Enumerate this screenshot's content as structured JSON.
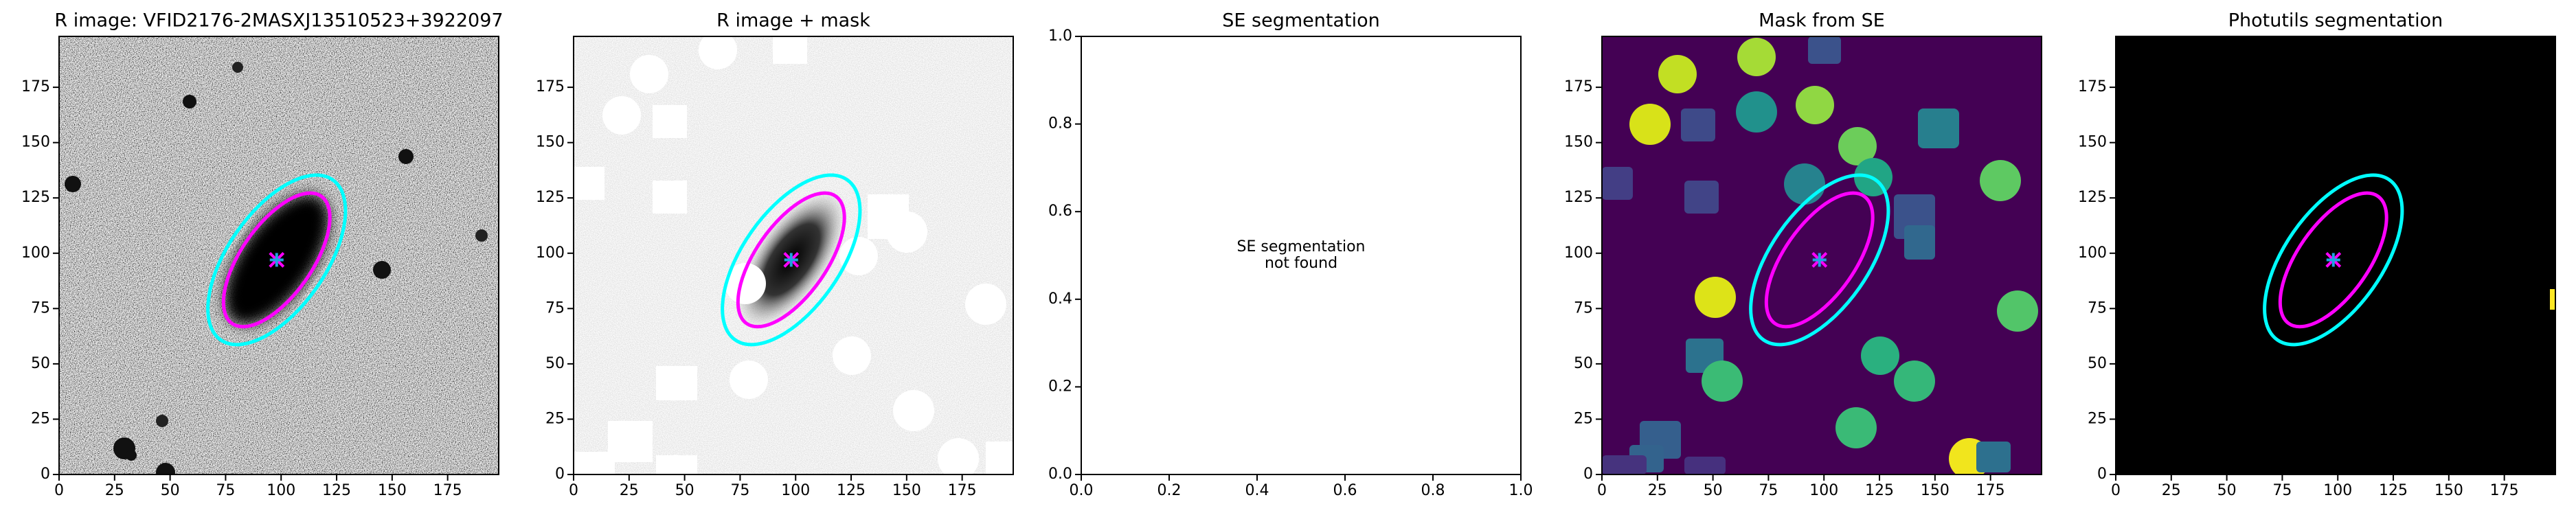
{
  "chart_data": [
    {
      "type": "image",
      "title": "R image: VFID2176-2MASXJ13510523+3922097",
      "xlim": [
        0,
        198
      ],
      "ylim": [
        0,
        198
      ],
      "xticks": [
        0,
        25,
        50,
        75,
        100,
        125,
        150,
        175
      ],
      "yticks": [
        0,
        25,
        50,
        75,
        100,
        125,
        150,
        175
      ],
      "ellipses": [
        {
          "color": "#00ffff",
          "x": 98,
          "y": 97,
          "a": 44,
          "b": 22,
          "angle": 55
        },
        {
          "color": "#ff00ff",
          "x": 98,
          "y": 97,
          "a": 35,
          "b": 16,
          "angle": 55
        }
      ],
      "markers": [
        {
          "color": "#ff00ff",
          "symbol": "x",
          "x": 98,
          "y": 97
        },
        {
          "color": "#1fa2e0",
          "symbol": "+",
          "x": 98,
          "y": 97
        }
      ]
    },
    {
      "type": "image",
      "title": "R image + mask",
      "xlim": [
        0,
        198
      ],
      "ylim": [
        0,
        198
      ],
      "xticks": [
        0,
        25,
        50,
        75,
        100,
        125,
        150,
        175
      ],
      "yticks": [
        0,
        25,
        50,
        75,
        100,
        125,
        150,
        175
      ],
      "ellipses": [
        {
          "color": "#00ffff",
          "x": 98,
          "y": 97,
          "a": 44,
          "b": 22,
          "angle": 55
        },
        {
          "color": "#ff00ff",
          "x": 98,
          "y": 97,
          "a": 35,
          "b": 16,
          "angle": 55
        }
      ],
      "markers": [
        {
          "color": "#ff00ff",
          "symbol": "x",
          "x": 98,
          "y": 97
        },
        {
          "color": "#1fa2e0",
          "symbol": "+",
          "x": 98,
          "y": 97
        }
      ]
    },
    {
      "type": "text",
      "title": "SE segmentation",
      "xlim": [
        0,
        1
      ],
      "ylim": [
        0,
        1
      ],
      "xticks": [
        {
          "value": 0,
          "label": "0.0"
        },
        {
          "value": 0.2,
          "label": "0.2"
        },
        {
          "value": 0.4,
          "label": "0.4"
        },
        {
          "value": 0.6,
          "label": "0.6"
        },
        {
          "value": 0.8,
          "label": "0.8"
        },
        {
          "value": 1,
          "label": "1.0"
        }
      ],
      "yticks": [
        {
          "value": 0,
          "label": "0.0"
        },
        {
          "value": 0.2,
          "label": "0.2"
        },
        {
          "value": 0.4,
          "label": "0.4"
        },
        {
          "value": 0.6,
          "label": "0.6"
        },
        {
          "value": 0.8,
          "label": "0.8"
        },
        {
          "value": 1,
          "label": "1.0"
        }
      ],
      "annotation": [
        "SE segmentation",
        "not found"
      ]
    },
    {
      "type": "image",
      "title": "Mask from SE",
      "xlim": [
        0,
        198
      ],
      "ylim": [
        0,
        198
      ],
      "xticks": [
        0,
        25,
        50,
        75,
        100,
        125,
        150,
        175
      ],
      "yticks": [
        0,
        25,
        50,
        75,
        100,
        125,
        150,
        175
      ],
      "ellipses": [
        {
          "color": "#00ffff",
          "x": 98,
          "y": 97,
          "a": 44,
          "b": 22,
          "angle": 55
        },
        {
          "color": "#ff00ff",
          "x": 98,
          "y": 97,
          "a": 35,
          "b": 16,
          "angle": 55
        }
      ],
      "markers": [
        {
          "color": "#ff00ff",
          "symbol": "x",
          "x": 98,
          "y": 97
        },
        {
          "color": "#1fa2e0",
          "symbol": "+",
          "x": 98,
          "y": 97
        }
      ]
    },
    {
      "type": "image",
      "title": "Photutils segmentation",
      "xlim": [
        0,
        198
      ],
      "ylim": [
        0,
        198
      ],
      "xticks": [
        0,
        25,
        50,
        75,
        100,
        125,
        150,
        175
      ],
      "yticks": [
        0,
        25,
        50,
        75,
        100,
        125,
        150,
        175
      ],
      "ellipses": [
        {
          "color": "#00ffff",
          "x": 98,
          "y": 97,
          "a": 44,
          "b": 22,
          "angle": 55
        },
        {
          "color": "#ff00ff",
          "x": 98,
          "y": 97,
          "a": 35,
          "b": 16,
          "angle": 55
        }
      ],
      "markers": [
        {
          "color": "#ff00ff",
          "symbol": "x",
          "x": 98,
          "y": 97
        },
        {
          "color": "#1fa2e0",
          "symbol": "+",
          "x": 98,
          "y": 97
        }
      ]
    }
  ]
}
